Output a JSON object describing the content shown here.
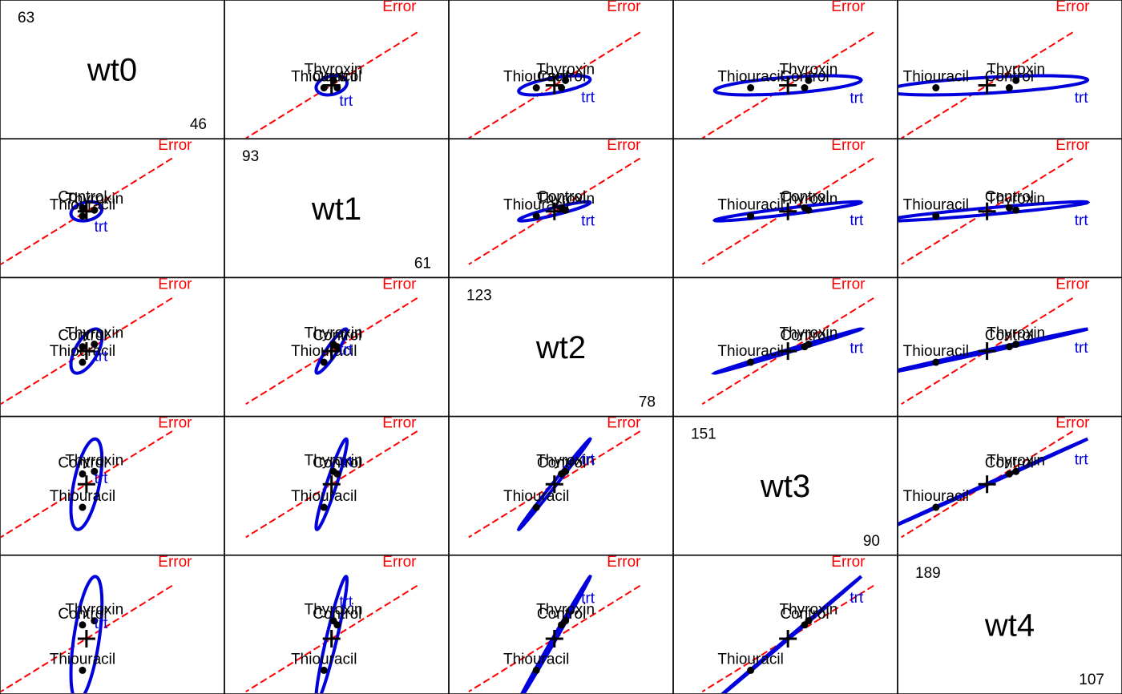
{
  "chart_data": {
    "type": "scatter",
    "variables": [
      "wt0",
      "wt1",
      "wt2",
      "wt3",
      "wt4"
    ],
    "ranges": [
      [
        46,
        63
      ],
      [
        61,
        93
      ],
      [
        78,
        123
      ],
      [
        90,
        151
      ],
      [
        107,
        189
      ]
    ],
    "groups": [
      {
        "name": "Control",
        "values": [
          52.0,
          77.1,
          100.6,
          126.3,
          147.8
        ]
      },
      {
        "name": "Thiouracil",
        "values": [
          52.0,
          75.0,
          95.0,
          110.0,
          118.0
        ]
      },
      {
        "name": "Thyroxin",
        "values": [
          53.0,
          76.5,
          101.5,
          127.5,
          150.5
        ]
      }
    ],
    "hypothesis_label": "trt",
    "error_label": "Error",
    "hypothesis_color": "#0000dd",
    "error_color": "#ff0000"
  }
}
